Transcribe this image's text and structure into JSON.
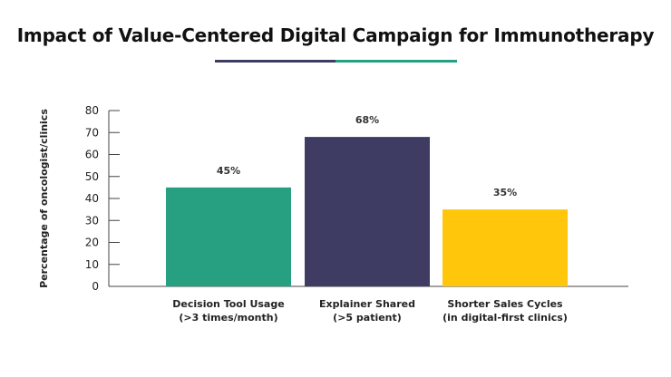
{
  "chart_data": {
    "type": "bar",
    "title": "Impact of Value-Centered Digital Campaign for Immunotherapy",
    "xlabel": "",
    "ylabel": "Percentage of oncologist/clinics",
    "ylim": [
      0,
      80
    ],
    "yticks": [
      0,
      10,
      20,
      30,
      40,
      50,
      60,
      70,
      80
    ],
    "grid": false,
    "categories": [
      [
        "Decision Tool Usage",
        "(>3 times/month)"
      ],
      [
        "Explainer Shared",
        "(>5 patient)"
      ],
      [
        "Shorter Sales Cycles",
        "(in digital-first clinics)"
      ]
    ],
    "values": [
      45,
      68,
      35
    ],
    "data_labels": [
      "45%",
      "68%",
      "35%"
    ],
    "colors": [
      "#27A082",
      "#3E3C63",
      "#FFC60B"
    ]
  },
  "title_underline_colors": [
    "#3E3C63",
    "#27A082"
  ]
}
